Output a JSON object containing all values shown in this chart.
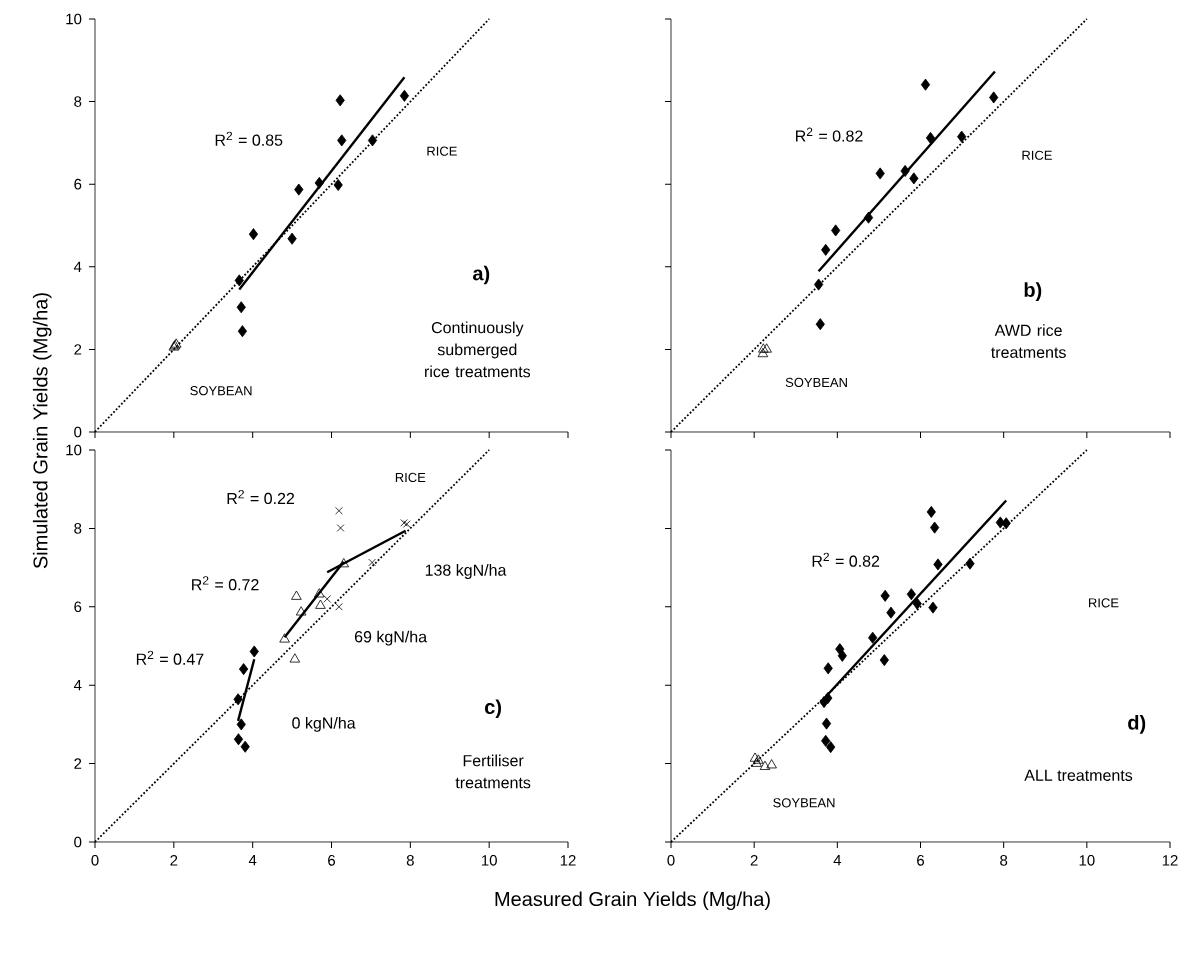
{
  "chart_data": [
    {
      "type": "scatter",
      "ylabel": "Simulated Grain Yields (Mg/ha)",
      "xlim": [
        0,
        12
      ],
      "ylim": [
        0,
        10
      ],
      "xticks": [
        0,
        2,
        4,
        6,
        8,
        10,
        12
      ],
      "yticks": [
        0,
        2,
        4,
        6,
        8,
        10
      ],
      "tick_labels": "y",
      "annotations": [
        "R$^{2}$ = 0.85",
        "RICE",
        "SOYBEAN",
        "a)",
        "Continuously submerged rice treatments"
      ],
      "series": [
        {
          "type": "line",
          "color": "#000000",
          "marker": "none",
          "line_style": "dotted",
          "x": [
            0,
            10
          ],
          "values": [
            0,
            10
          ]
        },
        {
          "type": "line",
          "color": "#000000",
          "marker": "none",
          "line_style": "solid",
          "x": [
            3.66,
            7.85
          ],
          "values": [
            3.45,
            8.59
          ]
        },
        {
          "color": "#000000",
          "marker": "diamond",
          "x": [
            6.22,
            6.26,
            7.04,
            7.85,
            5.17,
            5.69,
            6.17,
            4.02,
            5.0,
            3.66,
            3.71,
            3.74
          ],
          "values": [
            8.03,
            7.06,
            7.06,
            8.14,
            5.87,
            6.03,
            5.98,
            4.79,
            4.68,
            3.67,
            3.02,
            2.44
          ]
        },
        {
          "color": "#000000",
          "marker": "triangle",
          "x": [
            2.0,
            2.03,
            2.06
          ],
          "values": [
            2.05,
            2.08,
            2.12
          ]
        }
      ]
    },
    {
      "type": "scatter",
      "xlim": [
        0,
        12
      ],
      "ylim": [
        0,
        10
      ],
      "xticks": [
        0,
        2,
        4,
        6,
        8,
        10,
        12
      ],
      "yticks": [
        0,
        2,
        4,
        6,
        8,
        10
      ],
      "tick_labels": false,
      "annotations": [
        "R$^{2}$ = 0.82",
        "RICE",
        "SOYBEAN",
        "b)",
        "AWD rice treatments"
      ],
      "series": [
        {
          "type": "line",
          "color": "#000000",
          "marker": "none",
          "line_style": "dotted",
          "x": [
            0,
            10
          ],
          "values": [
            0,
            10
          ]
        },
        {
          "type": "line",
          "color": "#000000",
          "marker": "none",
          "line_style": "solid",
          "x": [
            3.55,
            7.79
          ],
          "values": [
            3.89,
            8.73
          ]
        },
        {
          "color": "#000000",
          "marker": "diamond",
          "x": [
            6.12,
            7.76,
            6.24,
            6.99,
            5.03,
            5.63,
            5.84,
            4.75,
            3.96,
            3.72,
            3.55,
            3.59
          ],
          "values": [
            8.41,
            8.1,
            7.12,
            7.15,
            6.26,
            6.32,
            6.14,
            5.19,
            4.88,
            4.41,
            3.57,
            2.61
          ]
        },
        {
          "color": "#000000",
          "marker": "triangle",
          "x": [
            2.22,
            2.3,
            2.21
          ],
          "values": [
            2.0,
            2.0,
            1.89
          ]
        }
      ]
    },
    {
      "type": "scatter",
      "xlabel": "Measured Grain Yields (Mg/ha)",
      "xlim": [
        0,
        12
      ],
      "ylim": [
        0,
        10
      ],
      "xticks": [
        0,
        2,
        4,
        6,
        8,
        10,
        12
      ],
      "yticks": [
        0,
        2,
        4,
        6,
        8,
        10
      ],
      "annotations": [
        "RICE",
        "R$^{2}$ = 0.22",
        "R$^{2}$ = 0.72",
        "138 kgN/ha",
        "69 kgN/ha",
        "R$^{2}$ = 0.47",
        "0 kgN/ha",
        "c)",
        "Fertiliser treatments"
      ],
      "series": [
        {
          "type": "line",
          "color": "#000000",
          "marker": "none",
          "line_style": "dotted",
          "x": [
            0,
            10
          ],
          "values": [
            0,
            10
          ]
        },
        {
          "type": "line",
          "color": "#000000",
          "marker": "none",
          "line_style": "solid",
          "x": [
            3.63,
            4.04
          ],
          "values": [
            3.09,
            4.66
          ]
        },
        {
          "type": "line",
          "color": "#000000",
          "marker": "none",
          "line_style": "solid",
          "x": [
            4.81,
            6.31
          ],
          "values": [
            5.22,
            7.15
          ]
        },
        {
          "type": "line",
          "color": "#000000",
          "marker": "none",
          "line_style": "solid",
          "x": [
            5.89,
            7.88
          ],
          "values": [
            6.88,
            7.94
          ]
        },
        {
          "color": "#000000",
          "marker": "diamond",
          "x": [
            4.04,
            3.77,
            3.63,
            3.71,
            3.64,
            3.81
          ],
          "values": [
            4.86,
            4.41,
            3.64,
            3.0,
            2.62,
            2.43
          ]
        },
        {
          "color": "#000000",
          "marker": "triangle",
          "x": [
            5.11,
            5.23,
            5.69,
            5.72,
            4.81,
            5.07,
            6.31
          ],
          "values": [
            6.26,
            5.86,
            6.32,
            6.03,
            5.17,
            4.66,
            7.09
          ]
        },
        {
          "color": "#000000",
          "marker": "cross",
          "x": [
            6.19,
            6.23,
            7.84,
            7.91,
            7.03,
            5.89,
            6.19
          ],
          "values": [
            8.45,
            8.01,
            8.14,
            8.11,
            7.13,
            6.2,
            6.0
          ]
        }
      ]
    },
    {
      "type": "scatter",
      "xlim": [
        0,
        12
      ],
      "ylim": [
        0,
        10
      ],
      "xticks": [
        0,
        2,
        4,
        6,
        8,
        10,
        12
      ],
      "yticks": [
        0,
        2,
        4,
        6,
        8,
        10
      ],
      "tick_labels": "x",
      "annotations": [
        "R$^{2}$ = 0.82",
        "RICE",
        "SOYBEAN",
        "d)",
        "ALL treatments"
      ],
      "series": [
        {
          "type": "line",
          "color": "#000000",
          "marker": "none",
          "line_style": "dotted",
          "x": [
            0,
            10
          ],
          "values": [
            0,
            10
          ]
        },
        {
          "type": "line",
          "color": "#000000",
          "marker": "none",
          "line_style": "solid",
          "x": [
            3.76,
            8.06
          ],
          "values": [
            3.75,
            8.71
          ]
        },
        {
          "color": "#000000",
          "marker": "diamond",
          "x": [
            6.26,
            6.34,
            7.92,
            8.06,
            6.42,
            7.19,
            5.15,
            5.29,
            5.78,
            5.92,
            6.3,
            4.85,
            4.06,
            4.12,
            3.78,
            5.13,
            3.68,
            3.77,
            3.74,
            3.72,
            3.84
          ],
          "values": [
            8.42,
            8.02,
            8.15,
            8.13,
            7.08,
            7.1,
            6.28,
            5.85,
            6.32,
            6.08,
            5.98,
            5.21,
            4.92,
            4.75,
            4.43,
            4.64,
            3.57,
            3.67,
            3.02,
            2.58,
            2.42
          ]
        },
        {
          "color": "#000000",
          "marker": "triangle",
          "x": [
            2.02,
            2.1,
            2.26,
            2.42,
            2.06
          ],
          "values": [
            2.13,
            2.08,
            1.92,
            1.96,
            2.0
          ]
        }
      ]
    }
  ]
}
